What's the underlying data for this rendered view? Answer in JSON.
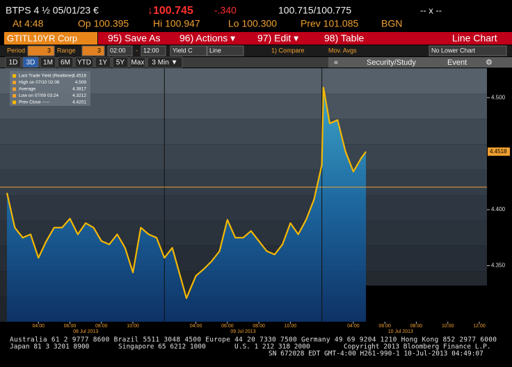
{
  "header": {
    "security": "BTPS 4 ½ 05/01/23 €",
    "last": "↓100.745",
    "change": "-.340",
    "bid_ask": "100.715/100.775",
    "window": "-- x --",
    "quote": [
      "At 4:48",
      "Op 100.395",
      "Hi 100.947",
      "Lo 100.300",
      "Prev 101.085",
      "BGN"
    ]
  },
  "toolbar": {
    "ticker": "GTITL10YR Corp",
    "buttons": [
      "95) Save As",
      "96) Actions ▾",
      "97) Edit ▾",
      "98) Table"
    ],
    "chart_kind": "Line Chart"
  },
  "settings": [
    "Period",
    "3",
    "Range",
    "3",
    "02:00",
    "-",
    "12:00",
    "Yield C",
    "Line",
    "1) Compare",
    "Mov. Avgs",
    "No Lower Chart"
  ],
  "tabs": [
    "1D",
    "3D",
    "1M",
    "6M",
    "YTD",
    "1Y",
    "5Y",
    "Max",
    "3 Min ▼"
  ],
  "tools": [
    "«",
    "Security/Study",
    "Event"
  ],
  "footer": [
    "Australia 61 2 9777 8600 Brazil 5511 3048 4500 Europe 44 20 7330 7500 Germany 49 69 9204 1210 Hong Kong 852 2977 6000",
    "Japan 81 3 3201 8900",
    "Singapore 65 6212 1000",
    "U.S. 1 212 318 2000",
    "Copyright 2013 Bloomberg Finance L.P.",
    "SN 672028 EDT  GMT-4:00 H261-990-1 10-Jul-2013 04:49:07"
  ],
  "chart_data": {
    "type": "line",
    "x": [
      "2013-07-08 02:00",
      "2013-07-08 02:30",
      "2013-07-08 03:00",
      "2013-07-08 03:30",
      "2013-07-08 04:00",
      "2013-07-08 04:30",
      "2013-07-08 05:00",
      "2013-07-08 05:30",
      "2013-07-08 06:00",
      "2013-07-08 06:30",
      "2013-07-08 07:00",
      "2013-07-08 07:30",
      "2013-07-08 08:00",
      "2013-07-08 08:30",
      "2013-07-08 09:00",
      "2013-07-08 09:30",
      "2013-07-08 10:00",
      "2013-07-08 10:30",
      "2013-07-08 11:00",
      "2013-07-08 11:30",
      "2013-07-09 02:00",
      "2013-07-09 02:30",
      "2013-07-09 03:00",
      "2013-07-09 03:24",
      "2013-07-09 04:00",
      "2013-07-09 04:30",
      "2013-07-09 05:00",
      "2013-07-09 05:30",
      "2013-07-09 06:00",
      "2013-07-09 06:30",
      "2013-07-09 07:00",
      "2013-07-09 07:30",
      "2013-07-09 08:00",
      "2013-07-09 08:30",
      "2013-07-09 09:00",
      "2013-07-09 09:30",
      "2013-07-09 10:00",
      "2013-07-09 10:30",
      "2013-07-09 11:00",
      "2013-07-09 11:30",
      "2013-07-10 02:00",
      "2013-07-10 02:06",
      "2013-07-10 02:30",
      "2013-07-10 03:00",
      "2013-07-10 03:30",
      "2013-07-10 04:00",
      "2013-07-10 04:30",
      "2013-07-10 04:48"
    ],
    "series": [
      {
        "color": "#f5b800",
        "values": [
          4.415,
          4.384,
          4.375,
          4.378,
          4.357,
          4.372,
          4.384,
          4.384,
          4.392,
          4.378,
          4.388,
          4.384,
          4.372,
          4.369,
          4.378,
          4.366,
          4.344,
          4.384,
          4.378,
          4.375,
          4.357,
          4.366,
          4.341,
          4.321,
          4.341,
          4.347,
          4.354,
          4.363,
          4.391,
          4.375,
          4.375,
          4.381,
          4.372,
          4.363,
          4.36,
          4.369,
          4.388,
          4.378,
          4.391,
          4.409,
          4.44,
          4.509,
          4.477,
          4.48,
          4.452,
          4.434,
          4.446,
          4.4518
        ]
      }
    ],
    "legend": [
      {
        "label": "Last Trade Yield (Realtime)",
        "value": 4.4518
      },
      {
        "label": "High on 07/10 02:06",
        "value": 4.509
      },
      {
        "label": "Average",
        "value": 4.3817
      },
      {
        "label": "Low on 07/09 03:24",
        "value": 4.3212
      },
      {
        "label": "Prev Close -----",
        "value": 4.4201
      }
    ],
    "xlim": [
      "2013-07-08 02:00",
      "2013-07-10 12:00"
    ],
    "xticks": [
      {
        "value": "2013-07-08 04:00",
        "label": "04:00"
      },
      {
        "value": "2013-07-08 06:00",
        "label": "06:00"
      },
      {
        "value": "2013-07-08 08:00",
        "label": "08:00"
      },
      {
        "value": "2013-07-08 10:00",
        "label": "10:00"
      },
      {
        "value": "2013-07-09 04:00",
        "label": "04:00"
      },
      {
        "value": "2013-07-09 06:00",
        "label": "06:00"
      },
      {
        "value": "2013-07-09 08:00",
        "label": "08:00"
      },
      {
        "value": "2013-07-09 10:00",
        "label": "10:00"
      },
      {
        "value": "2013-07-10 04:00",
        "label": "04:00"
      },
      {
        "value": "2013-07-10 06:00",
        "label": "06:00"
      },
      {
        "value": "2013-07-10 08:00",
        "label": "08:00"
      },
      {
        "value": "2013-07-10 10:00",
        "label": "10:00"
      },
      {
        "value": "2013-07-10 12:00",
        "label": "12:00"
      }
    ],
    "date_labels": [
      {
        "value": "2013-07-08 07:00",
        "label": "08 Jul 2013"
      },
      {
        "value": "2013-07-09 07:00",
        "label": "09 Jul 2013"
      },
      {
        "value": "2013-07-10 07:00",
        "label": "10 Jul 2013"
      }
    ],
    "ylim": [
      4.3,
      4.52
    ],
    "yticks": [
      {
        "value": 4.35,
        "label": "4.350"
      },
      {
        "value": 4.4,
        "label": "4.400"
      },
      {
        "value": 4.5,
        "label": "4.500"
      }
    ]
  }
}
